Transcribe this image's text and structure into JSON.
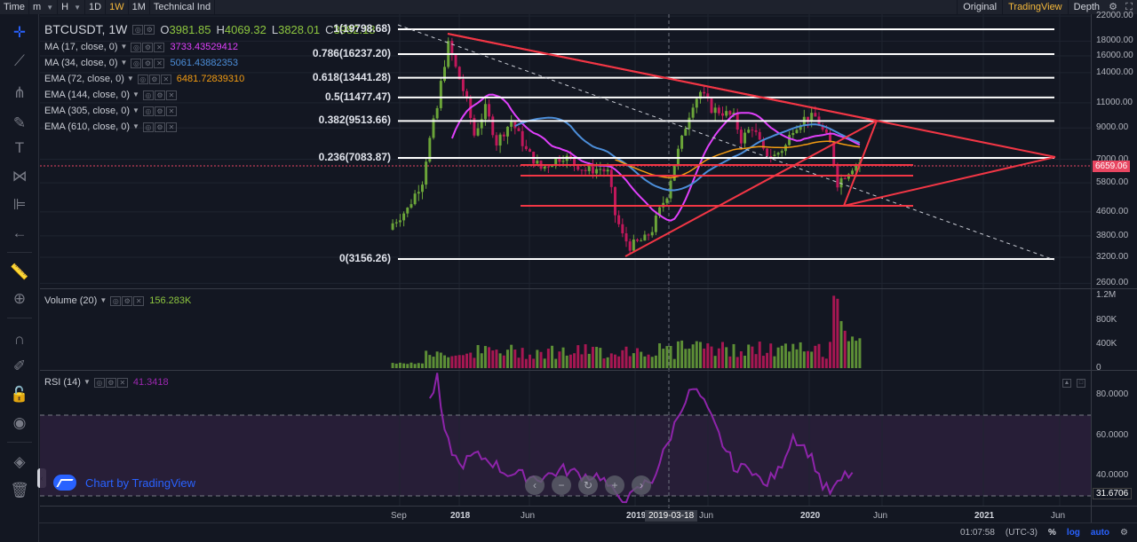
{
  "toolbar": {
    "time_label": "Time",
    "minute_label": "m",
    "hour_label": "H",
    "d1_label": "1D",
    "w1_label": "1W",
    "m1_label": "1M",
    "indicators_label": "Technical Ind",
    "original_label": "Original",
    "tradingview_label": "TradingView",
    "depth_label": "Depth",
    "active_interval": "1W",
    "active_view": "TradingView"
  },
  "main_legend": {
    "symbol": "BTCUSDT, 1W",
    "o_key": "O",
    "o_val": "3981.85",
    "h_key": "H",
    "h_val": "4069.32",
    "l_key": "L",
    "l_val": "3828.01",
    "c_key": "C",
    "c_val": "3982.18"
  },
  "indicators": [
    {
      "name": "MA (17, close, 0)",
      "value": "3733.43529412",
      "color": "#e040fb"
    },
    {
      "name": "MA (34, close, 0)",
      "value": "5061.43882353",
      "color": "#4c8ed9"
    },
    {
      "name": "EMA (72, close, 0)",
      "value": "6481.72839310",
      "color": "#f39c12"
    },
    {
      "name": "EMA (144, close, 0)",
      "value": "",
      "color": "#c9ccd4"
    },
    {
      "name": "EMA (305, close, 0)",
      "value": "",
      "color": "#c9ccd4"
    },
    {
      "name": "EMA (610, close, 0)",
      "value": "",
      "color": "#c9ccd4"
    }
  ],
  "fib_levels": [
    {
      "label": "1(19798.68)",
      "price": 19798.68
    },
    {
      "label": "0.786(16237.20)",
      "price": 16237.2
    },
    {
      "label": "0.618(13441.28)",
      "price": 13441.28
    },
    {
      "label": "0.5(11477.47)",
      "price": 11477.47
    },
    {
      "label": "0.382(9513.66)",
      "price": 9513.66
    },
    {
      "label": "0.236(7083.87)",
      "price": 7083.87
    },
    {
      "label": "0(3156.26)",
      "price": 3156.26
    }
  ],
  "price_axis": [
    "22000.00",
    "18000.00",
    "16000.00",
    "14000.00",
    "11000.00",
    "9000.00",
    "7000.00",
    "5800.00",
    "4600.00",
    "3800.00",
    "3200.00",
    "2600.00"
  ],
  "current_price": "6659.06",
  "volume_panel": {
    "label": "Volume (20)",
    "value": "156.283K",
    "axis": [
      "1.2M",
      "800K",
      "400K",
      "0"
    ]
  },
  "rsi_panel": {
    "label": "RSI (14)",
    "value": "41.3418",
    "axis": [
      "80.0000",
      "60.0000",
      "40.0000"
    ],
    "current": "31.6706"
  },
  "time_axis": [
    "Sep",
    "2018",
    "Jun",
    "2019",
    "Jun",
    "2020",
    "Jun",
    "2021",
    "Jun"
  ],
  "crosshair_date": "2019-03-18",
  "watermark": "Chart by TradingView",
  "bottom": {
    "clock": "01:07:58",
    "tz": "(UTC-3)",
    "percent": "%",
    "log": "log",
    "auto": "auto"
  },
  "icons": [
    "crosshair-icon",
    "trendline-icon",
    "fork-icon",
    "brush-icon",
    "text-icon",
    "pattern-icon",
    "measure-icon",
    "arrow-left-icon",
    "ruler-icon",
    "zoom-icon",
    "magnet-icon",
    "lock-draw-icon",
    "lock-icon",
    "eye-icon",
    "layers-icon",
    "trash-icon"
  ]
}
